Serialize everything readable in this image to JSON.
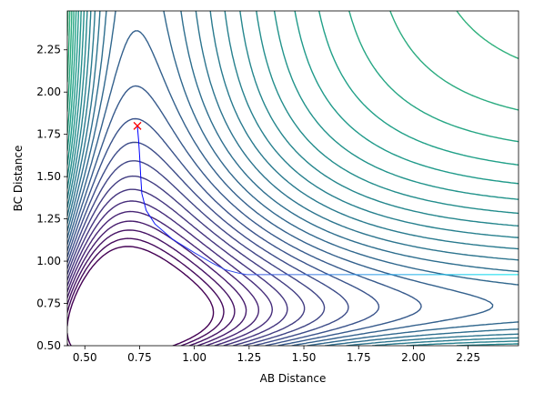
{
  "chart_data": {
    "type": "contour",
    "xlabel": "AB Distance",
    "ylabel": "BC Distance",
    "xlim": [
      0.42,
      2.48
    ],
    "ylim": [
      0.5,
      2.48
    ],
    "x_ticks": [
      0.5,
      0.75,
      1.0,
      1.25,
      1.5,
      1.75,
      2.0,
      2.25
    ],
    "x_tick_labels": [
      "0.50",
      "0.75",
      "1.00",
      "1.25",
      "1.50",
      "1.75",
      "2.00",
      "2.25"
    ],
    "y_ticks": [
      0.5,
      0.75,
      1.0,
      1.25,
      1.5,
      1.75,
      2.0,
      2.25
    ],
    "y_tick_labels": [
      "0.50",
      "0.75",
      "1.00",
      "1.25",
      "1.50",
      "1.75",
      "2.00",
      "2.25"
    ],
    "colormap": "viridis",
    "contour_levels": 40,
    "grid": false,
    "start_marker": {
      "x": 0.74,
      "y": 1.8,
      "symbol": "x",
      "color": "#ff0000"
    },
    "trajectory": {
      "x": [
        0.74,
        0.745,
        0.75,
        0.755,
        0.76,
        0.78,
        0.82,
        0.9,
        1.0,
        1.08,
        1.14,
        1.2,
        1.24,
        1.3,
        1.42,
        1.55,
        1.75,
        2.0,
        2.25,
        2.48
      ],
      "y": [
        1.8,
        1.72,
        1.62,
        1.5,
        1.4,
        1.3,
        1.22,
        1.13,
        1.05,
        0.99,
        0.95,
        0.93,
        0.92,
        0.92,
        0.92,
        0.92,
        0.92,
        0.92,
        0.92,
        0.92
      ],
      "colors": [
        "#0000ff",
        "#4169e1",
        "#00e5ee"
      ]
    }
  }
}
